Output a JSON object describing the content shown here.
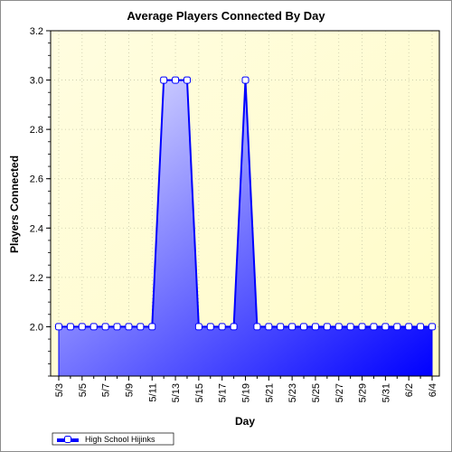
{
  "chart_data": {
    "type": "area",
    "title": "Average Players Connected By Day",
    "xlabel": "Day",
    "ylabel": "Players Connected",
    "ylim": [
      1.8,
      3.2
    ],
    "yticks": [
      2.0,
      2.2,
      2.4,
      2.6,
      2.8,
      3.0,
      3.2
    ],
    "ytick_labels": [
      "2.0",
      "2.2",
      "2.4",
      "2.6",
      "2.8",
      "3.0",
      "3.2"
    ],
    "x": [
      "5/3",
      "5/4",
      "5/5",
      "5/6",
      "5/7",
      "5/8",
      "5/9",
      "5/10",
      "5/11",
      "5/12",
      "5/13",
      "5/14",
      "5/15",
      "5/16",
      "5/17",
      "5/18",
      "5/19",
      "5/20",
      "5/21",
      "5/22",
      "5/23",
      "5/24",
      "5/25",
      "5/26",
      "5/27",
      "5/28",
      "5/29",
      "5/30",
      "5/31",
      "6/1",
      "6/2",
      "6/3",
      "6/4"
    ],
    "xtick_labels": [
      "5/3",
      "5/5",
      "5/7",
      "5/9",
      "5/11",
      "5/13",
      "5/15",
      "5/17",
      "5/19",
      "5/21",
      "5/23",
      "5/25",
      "5/27",
      "5/29",
      "5/31",
      "6/2",
      "6/4"
    ],
    "series": [
      {
        "name": "High School Hijinks",
        "values": [
          2.0,
          2.0,
          2.0,
          2.0,
          2.0,
          2.0,
          2.0,
          2.0,
          2.0,
          3.0,
          3.0,
          3.0,
          2.0,
          2.0,
          2.0,
          2.0,
          3.0,
          2.0,
          2.0,
          2.0,
          2.0,
          2.0,
          2.0,
          2.0,
          2.0,
          2.0,
          2.0,
          2.0,
          2.0,
          2.0,
          2.0,
          2.0,
          2.0
        ]
      }
    ],
    "grid": true,
    "legend_position": "bottom-left",
    "colors": {
      "line": "#0000ff",
      "fill_light": "#e8e8ff",
      "fill_dark": "#0000ff",
      "plot_bg_light": "#fffde0",
      "plot_bg_dark": "#fffcc8",
      "marker_fill": "#ffffff"
    }
  }
}
